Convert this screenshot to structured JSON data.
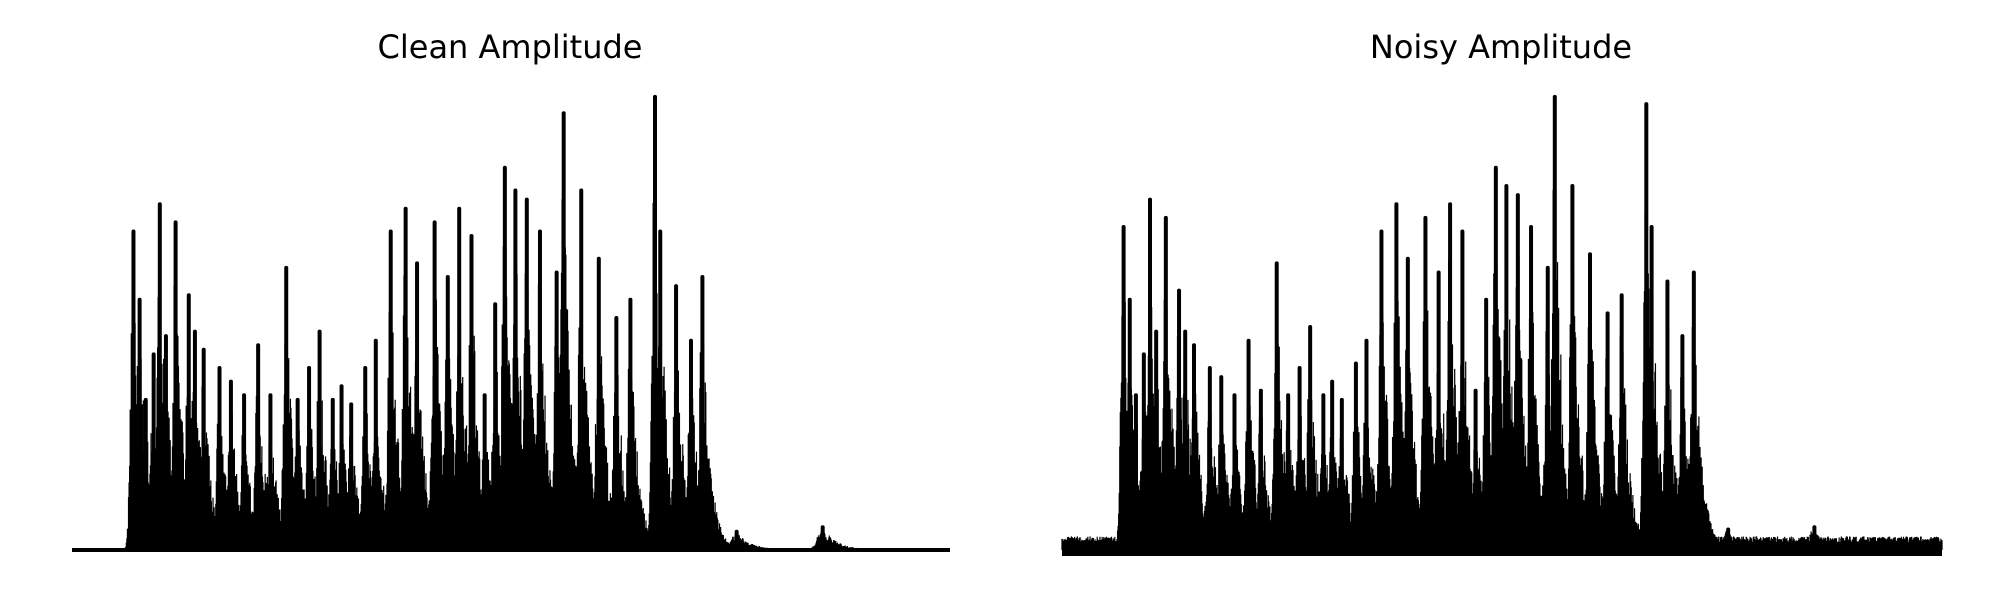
{
  "chart_data": [
    {
      "type": "area",
      "title": "Clean Amplitude",
      "xlabel": "",
      "ylabel": "",
      "grid": false,
      "axes_visible": false,
      "color": "#000000",
      "ylim": [
        0,
        1.0
      ],
      "peaks": [
        {
          "x": 0.07,
          "y": 0.7
        },
        {
          "x": 0.077,
          "y": 0.55
        },
        {
          "x": 0.084,
          "y": 0.33
        },
        {
          "x": 0.093,
          "y": 0.43
        },
        {
          "x": 0.1,
          "y": 0.76
        },
        {
          "x": 0.107,
          "y": 0.47
        },
        {
          "x": 0.118,
          "y": 0.72
        },
        {
          "x": 0.133,
          "y": 0.56
        },
        {
          "x": 0.14,
          "y": 0.48
        },
        {
          "x": 0.15,
          "y": 0.44
        },
        {
          "x": 0.168,
          "y": 0.4
        },
        {
          "x": 0.181,
          "y": 0.37
        },
        {
          "x": 0.196,
          "y": 0.34
        },
        {
          "x": 0.212,
          "y": 0.45
        },
        {
          "x": 0.226,
          "y": 0.34
        },
        {
          "x": 0.244,
          "y": 0.62
        },
        {
          "x": 0.257,
          "y": 0.33
        },
        {
          "x": 0.27,
          "y": 0.4
        },
        {
          "x": 0.282,
          "y": 0.48
        },
        {
          "x": 0.297,
          "y": 0.33
        },
        {
          "x": 0.307,
          "y": 0.36
        },
        {
          "x": 0.318,
          "y": 0.32
        },
        {
          "x": 0.334,
          "y": 0.4
        },
        {
          "x": 0.346,
          "y": 0.46
        },
        {
          "x": 0.363,
          "y": 0.7
        },
        {
          "x": 0.38,
          "y": 0.75
        },
        {
          "x": 0.393,
          "y": 0.63
        },
        {
          "x": 0.413,
          "y": 0.72
        },
        {
          "x": 0.428,
          "y": 0.6
        },
        {
          "x": 0.441,
          "y": 0.75
        },
        {
          "x": 0.455,
          "y": 0.69
        },
        {
          "x": 0.47,
          "y": 0.34
        },
        {
          "x": 0.482,
          "y": 0.54
        },
        {
          "x": 0.493,
          "y": 0.84
        },
        {
          "x": 0.505,
          "y": 0.79
        },
        {
          "x": 0.518,
          "y": 0.77
        },
        {
          "x": 0.533,
          "y": 0.7
        },
        {
          "x": 0.552,
          "y": 0.61
        },
        {
          "x": 0.56,
          "y": 0.96
        },
        {
          "x": 0.58,
          "y": 0.79
        },
        {
          "x": 0.6,
          "y": 0.64
        },
        {
          "x": 0.62,
          "y": 0.51
        },
        {
          "x": 0.636,
          "y": 0.55
        },
        {
          "x": 0.664,
          "y": 0.996
        },
        {
          "x": 0.67,
          "y": 0.7
        },
        {
          "x": 0.688,
          "y": 0.58
        },
        {
          "x": 0.705,
          "y": 0.46
        },
        {
          "x": 0.718,
          "y": 0.6
        },
        {
          "x": 0.757,
          "y": 0.04
        },
        {
          "x": 0.855,
          "y": 0.05
        }
      ]
    },
    {
      "type": "area",
      "title": "Noisy Amplitude",
      "xlabel": "",
      "ylabel": "",
      "grid": false,
      "axes_visible": false,
      "color": "#000000",
      "ylim": [
        0,
        1.0
      ],
      "noise_floor": 0.03,
      "peaks": [
        {
          "x": 0.07,
          "y": 0.71
        },
        {
          "x": 0.077,
          "y": 0.55
        },
        {
          "x": 0.084,
          "y": 0.34
        },
        {
          "x": 0.093,
          "y": 0.43
        },
        {
          "x": 0.1,
          "y": 0.77
        },
        {
          "x": 0.107,
          "y": 0.48
        },
        {
          "x": 0.118,
          "y": 0.73
        },
        {
          "x": 0.133,
          "y": 0.57
        },
        {
          "x": 0.14,
          "y": 0.48
        },
        {
          "x": 0.15,
          "y": 0.45
        },
        {
          "x": 0.168,
          "y": 0.4
        },
        {
          "x": 0.181,
          "y": 0.38
        },
        {
          "x": 0.196,
          "y": 0.34
        },
        {
          "x": 0.212,
          "y": 0.46
        },
        {
          "x": 0.226,
          "y": 0.35
        },
        {
          "x": 0.244,
          "y": 0.63
        },
        {
          "x": 0.257,
          "y": 0.34
        },
        {
          "x": 0.27,
          "y": 0.4
        },
        {
          "x": 0.282,
          "y": 0.49
        },
        {
          "x": 0.297,
          "y": 0.34
        },
        {
          "x": 0.307,
          "y": 0.37
        },
        {
          "x": 0.318,
          "y": 0.33
        },
        {
          "x": 0.334,
          "y": 0.41
        },
        {
          "x": 0.346,
          "y": 0.46
        },
        {
          "x": 0.363,
          "y": 0.7
        },
        {
          "x": 0.38,
          "y": 0.76
        },
        {
          "x": 0.393,
          "y": 0.64
        },
        {
          "x": 0.413,
          "y": 0.73
        },
        {
          "x": 0.428,
          "y": 0.61
        },
        {
          "x": 0.441,
          "y": 0.76
        },
        {
          "x": 0.455,
          "y": 0.7
        },
        {
          "x": 0.47,
          "y": 0.35
        },
        {
          "x": 0.482,
          "y": 0.55
        },
        {
          "x": 0.493,
          "y": 0.84
        },
        {
          "x": 0.505,
          "y": 0.8
        },
        {
          "x": 0.518,
          "y": 0.78
        },
        {
          "x": 0.533,
          "y": 0.71
        },
        {
          "x": 0.552,
          "y": 0.62
        },
        {
          "x": 0.56,
          "y": 0.996
        },
        {
          "x": 0.58,
          "y": 0.8
        },
        {
          "x": 0.6,
          "y": 0.65
        },
        {
          "x": 0.62,
          "y": 0.52
        },
        {
          "x": 0.636,
          "y": 0.56
        },
        {
          "x": 0.664,
          "y": 0.98
        },
        {
          "x": 0.67,
          "y": 0.71
        },
        {
          "x": 0.688,
          "y": 0.59
        },
        {
          "x": 0.705,
          "y": 0.47
        },
        {
          "x": 0.718,
          "y": 0.61
        },
        {
          "x": 0.757,
          "y": 0.045
        },
        {
          "x": 0.855,
          "y": 0.05
        }
      ]
    }
  ]
}
